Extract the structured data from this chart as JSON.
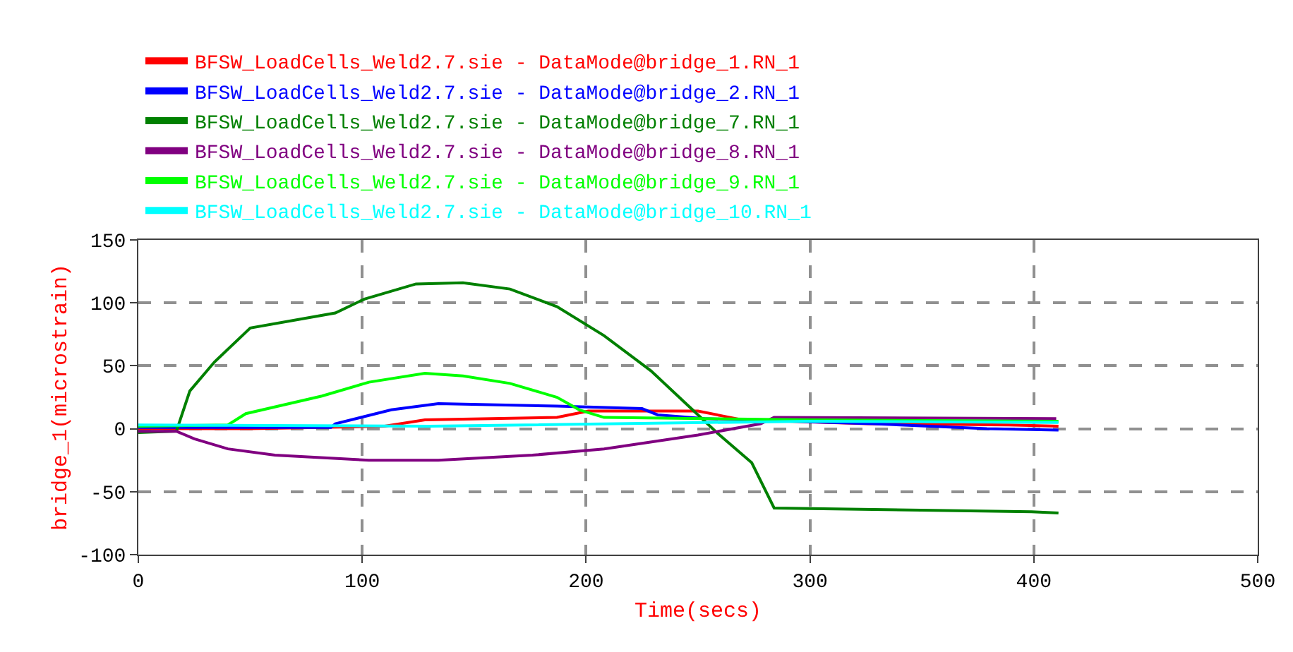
{
  "chart_data": {
    "type": "line",
    "xlabel": "Time(secs)",
    "ylabel": "bridge_1(microstrain)",
    "xlim": [
      0,
      500
    ],
    "xticks": [
      0,
      100,
      200,
      300,
      400,
      500
    ],
    "ylim": [
      -100,
      150
    ],
    "yticks": [
      -100,
      -50,
      0,
      50,
      100,
      150
    ],
    "grid": true,
    "legend": "top",
    "line_style": "solid",
    "marker": "none",
    "series": [
      {
        "name": "BFSW_LoadCells_Weld2.7.sie - DataMode@bridge_1.RN_1",
        "color": "#ff0000",
        "x": [
          0,
          50,
          110,
          128,
          187,
          201,
          250,
          270,
          326,
          389,
          411
        ],
        "values": [
          0,
          0,
          2,
          7,
          9,
          14,
          14,
          7,
          4,
          3,
          2
        ]
      },
      {
        "name": "BFSW_LoadCells_Weld2.7.sie - DataMode@bridge_2.RN_1",
        "color": "#0000ff",
        "x": [
          0,
          50,
          86,
          88,
          113,
          134,
          187,
          225,
          232,
          253,
          328,
          379,
          411
        ],
        "values": [
          1,
          1,
          1,
          4,
          15,
          20,
          18,
          16,
          11,
          8,
          4,
          0,
          -1
        ]
      },
      {
        "name": "BFSW_LoadCells_Weld2.7.sie - DataMode@bridge_7.RN_1",
        "color": "#008000",
        "x": [
          0,
          17,
          23,
          34,
          50,
          88,
          101,
          124,
          145,
          166,
          187,
          208,
          229,
          250,
          259,
          274,
          284,
          399,
          411
        ],
        "values": [
          -3,
          -2,
          30,
          53,
          80,
          92,
          103,
          115,
          116,
          111,
          97,
          74,
          46,
          11,
          -4,
          -27,
          -63,
          -66,
          -67
        ]
      },
      {
        "name": "BFSW_LoadCells_Weld2.7.sie - DataMode@bridge_8.RN_1",
        "color": "#800080",
        "x": [
          0,
          17,
          25,
          40,
          61,
          103,
          134,
          176,
          208,
          250,
          278,
          284,
          410
        ],
        "values": [
          -2,
          -2,
          -8,
          -16,
          -21,
          -25,
          -25,
          -21,
          -16,
          -5,
          4,
          9,
          8
        ]
      },
      {
        "name": "BFSW_LoadCells_Weld2.7.sie - DataMode@bridge_9.RN_1",
        "color": "#00ff00",
        "x": [
          0,
          40,
          48,
          82,
          103,
          128,
          145,
          166,
          187,
          197,
          208,
          300,
          411
        ],
        "values": [
          2,
          3,
          12,
          26,
          37,
          44,
          42,
          36,
          25,
          15,
          9,
          7,
          6
        ]
      },
      {
        "name": "BFSW_LoadCells_Weld2.7.sie - DataMode@bridge_10.RN_1",
        "color": "#00ffff",
        "x": [
          0,
          130,
          300,
          411
        ],
        "values": [
          3,
          2,
          6,
          5
        ]
      }
    ]
  }
}
